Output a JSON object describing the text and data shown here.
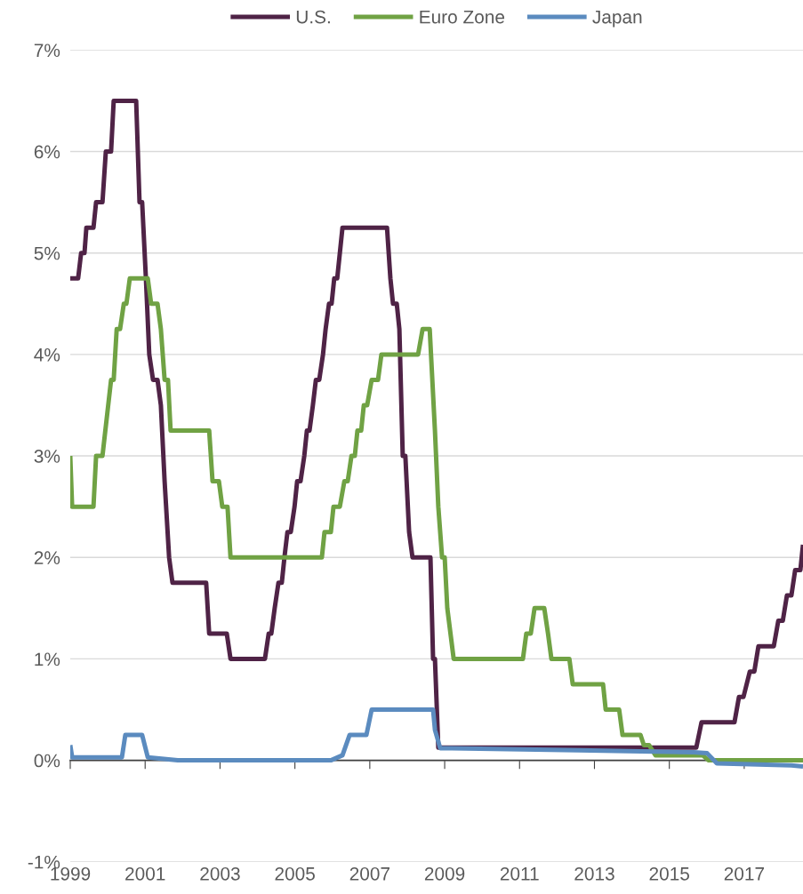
{
  "chart_data": {
    "type": "line",
    "series": [
      {
        "name": "U.S.",
        "color": "#4f2346",
        "x": [
          1999.0,
          1999.21,
          1999.29,
          1999.38,
          1999.43,
          1999.62,
          1999.69,
          1999.86,
          1999.95,
          2000.09,
          2000.16,
          2000.76,
          2000.85,
          2000.92,
          2001.02,
          2001.11,
          2001.21,
          2001.33,
          2001.42,
          2001.52,
          2001.64,
          2001.73,
          2002.63,
          2002.71,
          2003.18,
          2003.28,
          2004.2,
          2004.3,
          2004.37,
          2004.46,
          2004.56,
          2004.65,
          2004.72,
          2004.8,
          2004.89,
          2004.99,
          2005.06,
          2005.15,
          2005.25,
          2005.32,
          2005.39,
          2005.48,
          2005.56,
          2005.65,
          2005.75,
          2005.82,
          2005.91,
          2005.98,
          2006.05,
          2006.13,
          2006.2,
          2006.27,
          2007.46,
          2007.55,
          2007.62,
          2007.72,
          2007.79,
          2007.88,
          2007.95,
          2008.05,
          2008.14,
          2008.62,
          2008.69,
          2008.74,
          2008.83,
          2015.72,
          2015.86,
          2016.74,
          2016.86,
          2016.98,
          2017.15,
          2017.27,
          2017.38,
          2017.79,
          2017.91,
          2018.03,
          2018.14,
          2018.26,
          2018.36,
          2018.5,
          2018.57
        ],
        "values": [
          4.75,
          4.75,
          5.0,
          5.0,
          5.25,
          5.25,
          5.5,
          5.5,
          6.0,
          6.0,
          6.5,
          6.5,
          5.5,
          5.5,
          4.75,
          4.0,
          3.75,
          3.75,
          3.5,
          2.75,
          2.0,
          1.75,
          1.75,
          1.25,
          1.25,
          1.0,
          1.0,
          1.25,
          1.25,
          1.5,
          1.75,
          1.75,
          2.0,
          2.25,
          2.25,
          2.5,
          2.75,
          2.75,
          3.0,
          3.25,
          3.25,
          3.5,
          3.75,
          3.75,
          4.0,
          4.25,
          4.5,
          4.5,
          4.75,
          4.75,
          5.0,
          5.25,
          5.25,
          4.75,
          4.5,
          4.5,
          4.25,
          3.0,
          3.0,
          2.25,
          2.0,
          2.0,
          1.0,
          1.0,
          0.125,
          0.125,
          0.375,
          0.375,
          0.625,
          0.625,
          0.875,
          0.875,
          1.125,
          1.125,
          1.375,
          1.375,
          1.625,
          1.625,
          1.875,
          1.875,
          2.125
        ]
      },
      {
        "name": "Euro Zone",
        "color": "#70a244",
        "x": [
          1999.0,
          1999.05,
          1999.62,
          1999.69,
          1999.86,
          2000.09,
          2000.16,
          2000.24,
          2000.33,
          2000.43,
          2000.5,
          2000.59,
          2001.07,
          2001.16,
          2001.33,
          2001.42,
          2001.52,
          2001.61,
          2001.68,
          2002.71,
          2002.8,
          2002.97,
          2003.06,
          2003.2,
          2003.28,
          2005.72,
          2005.79,
          2005.96,
          2006.03,
          2006.2,
          2006.32,
          2006.41,
          2006.51,
          2006.6,
          2006.67,
          2006.77,
          2006.84,
          2006.93,
          2007.05,
          2007.22,
          2007.31,
          2008.29,
          2008.41,
          2008.6,
          2008.74,
          2008.83,
          2008.93,
          2009.0,
          2009.07,
          2009.24,
          2011.09,
          2011.18,
          2011.3,
          2011.4,
          2011.66,
          2011.76,
          2011.85,
          2012.33,
          2012.42,
          2013.23,
          2013.3,
          2013.66,
          2013.75,
          2014.23,
          2014.32,
          2014.46,
          2014.63,
          2015.89,
          2016.05,
          2018.57
        ],
        "values": [
          3.0,
          2.5,
          2.5,
          3.0,
          3.0,
          3.75,
          3.75,
          4.25,
          4.25,
          4.5,
          4.5,
          4.75,
          4.75,
          4.5,
          4.5,
          4.25,
          3.75,
          3.75,
          3.25,
          3.25,
          2.75,
          2.75,
          2.5,
          2.5,
          2.0,
          2.0,
          2.25,
          2.25,
          2.5,
          2.5,
          2.75,
          2.75,
          3.0,
          3.0,
          3.25,
          3.25,
          3.5,
          3.5,
          3.75,
          3.75,
          4.0,
          4.0,
          4.25,
          4.25,
          3.25,
          2.5,
          2.0,
          2.0,
          1.5,
          1.0,
          1.0,
          1.25,
          1.25,
          1.5,
          1.5,
          1.25,
          1.0,
          1.0,
          0.75,
          0.75,
          0.5,
          0.5,
          0.25,
          0.25,
          0.15,
          0.15,
          0.05,
          0.05,
          0.0,
          0.0
        ]
      },
      {
        "name": "Japan",
        "color": "#5b8bbf",
        "x": [
          1999.0,
          1999.05,
          2000.38,
          2000.47,
          2000.92,
          2001.07,
          2001.87,
          2005.96,
          2006.27,
          2006.46,
          2006.91,
          2007.05,
          2008.69,
          2008.74,
          2008.88,
          2012.56,
          2015.65,
          2016.01,
          2016.27,
          2018.26,
          2018.57
        ],
        "values": [
          0.15,
          0.03,
          0.03,
          0.25,
          0.25,
          0.03,
          0.0,
          0.0,
          0.05,
          0.25,
          0.25,
          0.5,
          0.5,
          0.3,
          0.12,
          0.1,
          0.08,
          0.07,
          -0.03,
          -0.05,
          -0.06
        ]
      }
    ],
    "xlim": [
      1999.0,
      2018.57
    ],
    "xticks": [
      1999,
      2001,
      2003,
      2005,
      2007,
      2009,
      2011,
      2013,
      2015,
      2017
    ],
    "ylim": [
      -1,
      7
    ],
    "yticks": [
      {
        "value": -1,
        "label": "-1%"
      },
      {
        "value": 0,
        "label": "0%"
      },
      {
        "value": 1,
        "label": "1%"
      },
      {
        "value": 2,
        "label": "2%"
      },
      {
        "value": 3,
        "label": "3%"
      },
      {
        "value": 4,
        "label": "4%"
      },
      {
        "value": 5,
        "label": "5%"
      },
      {
        "value": 6,
        "label": "6%"
      },
      {
        "value": 7,
        "label": "7%"
      }
    ],
    "grid": "y",
    "legend": "top",
    "line_style": "solid",
    "marker": "none"
  }
}
